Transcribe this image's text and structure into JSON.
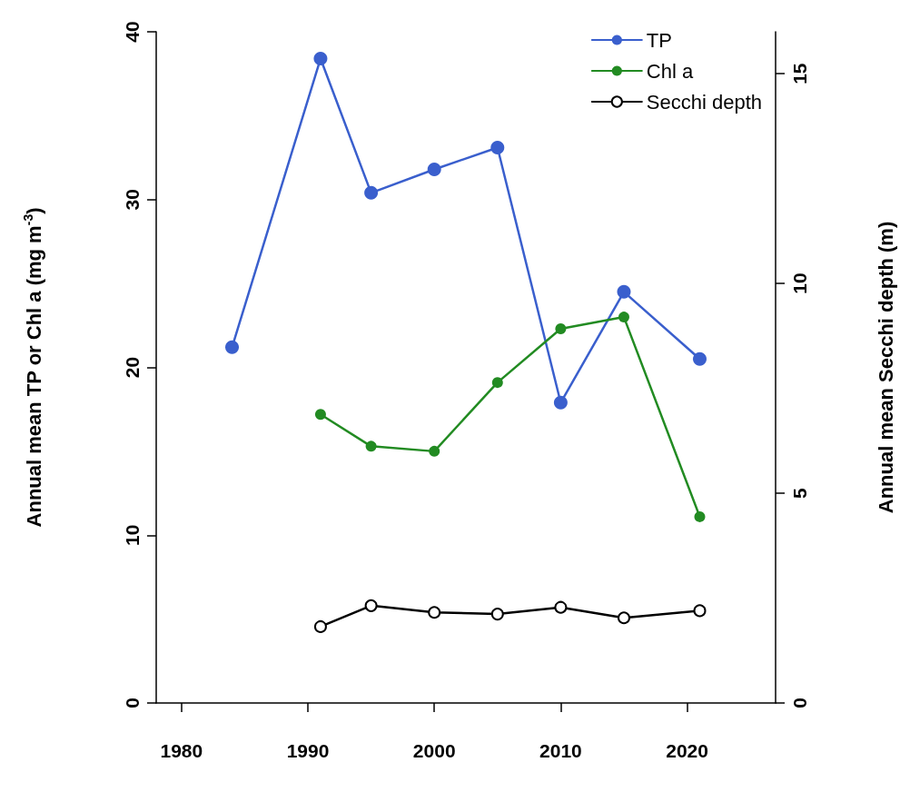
{
  "chart_data": {
    "type": "line",
    "ylabel": "Annual mean TP or Chl a (mg m$^{-3}$)",
    "y2label": "Annual mean Secchi depth (m)",
    "x": [
      1984,
      1991,
      1995,
      2000,
      2005,
      2010,
      2015,
      2021
    ],
    "series": [
      {
        "name": "TP",
        "color": "#3a5fcd",
        "values": [
          21.2,
          38.4,
          30.4,
          31.8,
          33.1,
          17.9,
          24.5,
          20.5
        ]
      },
      {
        "name": "Chl a",
        "color": "#228b22",
        "values": [
          null,
          17.2,
          15.3,
          15.0,
          19.1,
          22.3,
          23.0,
          11.1
        ]
      },
      {
        "name": "Secchi depth",
        "color": "#000000",
        "axis": "y2",
        "values": [
          null,
          1.82,
          2.32,
          2.16,
          2.12,
          2.28,
          2.03,
          2.2
        ]
      }
    ],
    "xlim": [
      1978,
      2027
    ],
    "xticks": [
      1980,
      1990,
      2000,
      2010,
      2020
    ],
    "ylim": [
      0,
      40
    ],
    "yticks": [
      0,
      10,
      20,
      30,
      40
    ],
    "y2lim": [
      0,
      16
    ],
    "y2ticks": [
      0,
      5,
      10,
      15
    ],
    "grid": false,
    "legend": "top right",
    "marker": "circle",
    "line_style": "solid"
  }
}
